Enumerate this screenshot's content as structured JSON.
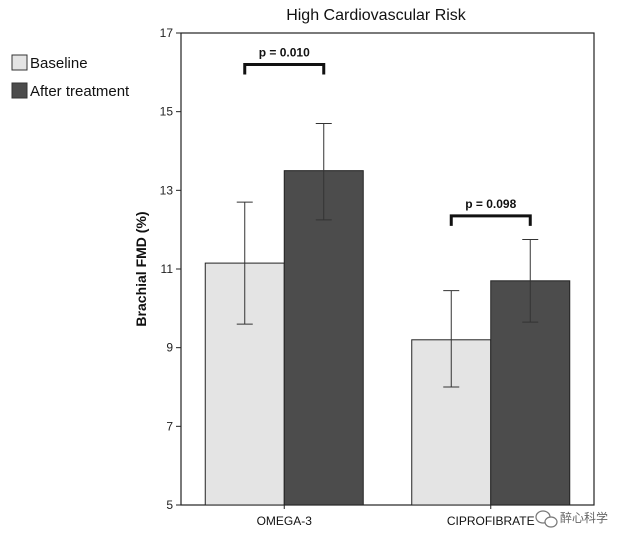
{
  "chart_data": {
    "type": "bar",
    "title": "High Cardiovascular Risk",
    "xlabel": "",
    "ylabel": "Brachial FMD (%)",
    "ylim": [
      5,
      17
    ],
    "yticks": [
      5,
      7,
      9,
      11,
      13,
      15,
      17
    ],
    "categories": [
      "OMEGA-3",
      "CIPROFIBRATE"
    ],
    "series": [
      {
        "name": "Baseline",
        "color": "#e4e4e4",
        "values": [
          11.15,
          9.2
        ],
        "err_low": [
          9.6,
          8.0
        ],
        "err_high": [
          12.7,
          10.45
        ]
      },
      {
        "name": "After treatment",
        "color": "#4c4c4c",
        "values": [
          13.5,
          10.7
        ],
        "err_low": [
          12.25,
          9.65
        ],
        "err_high": [
          14.7,
          11.75
        ]
      }
    ],
    "annotations": [
      {
        "category": "OMEGA-3",
        "label": "p = 0.010",
        "y": 16.2
      },
      {
        "category": "CIPROFIBRATE",
        "label": "p = 0.098",
        "y": 12.35
      }
    ],
    "legend_position": "top-left",
    "grid": false
  },
  "watermark": {
    "text": "醉心科学"
  }
}
